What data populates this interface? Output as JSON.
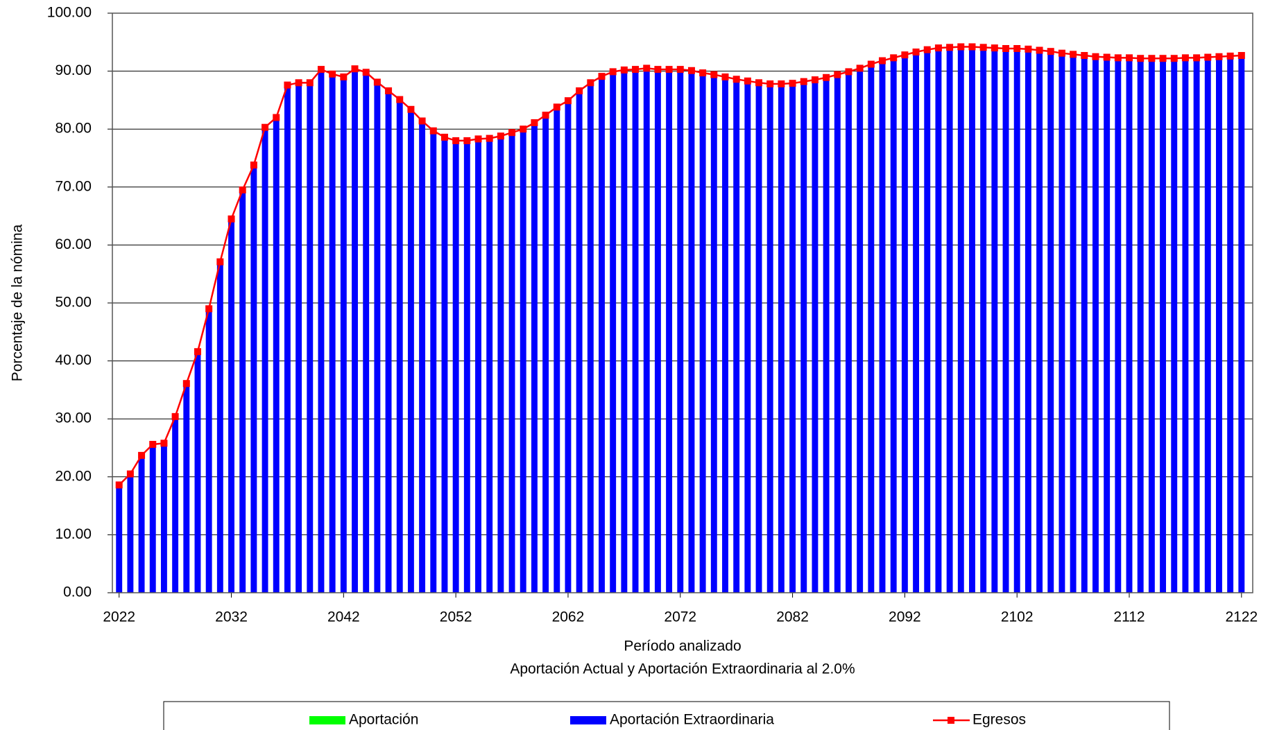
{
  "chart_data": {
    "type": "bar",
    "y_label": "Porcentaje de la nómina",
    "x_label": "Período analizado",
    "subtitle": "Aportación Actual y Aportación Extraordinaria al 2.0%",
    "x": [
      2022,
      2023,
      2024,
      2025,
      2026,
      2027,
      2028,
      2029,
      2030,
      2031,
      2032,
      2033,
      2034,
      2035,
      2036,
      2037,
      2038,
      2039,
      2040,
      2041,
      2042,
      2043,
      2044,
      2045,
      2046,
      2047,
      2048,
      2049,
      2050,
      2051,
      2052,
      2053,
      2054,
      2055,
      2056,
      2057,
      2058,
      2059,
      2060,
      2061,
      2062,
      2063,
      2064,
      2065,
      2066,
      2067,
      2068,
      2069,
      2070,
      2071,
      2072,
      2073,
      2074,
      2075,
      2076,
      2077,
      2078,
      2079,
      2080,
      2081,
      2082,
      2083,
      2084,
      2085,
      2086,
      2087,
      2088,
      2089,
      2090,
      2091,
      2092,
      2093,
      2094,
      2095,
      2096,
      2097,
      2098,
      2099,
      2100,
      2101,
      2102,
      2103,
      2104,
      2105,
      2106,
      2107,
      2108,
      2109,
      2110,
      2111,
      2112,
      2113,
      2114,
      2115,
      2116,
      2117,
      2118,
      2119,
      2120,
      2121,
      2122
    ],
    "series": [
      {
        "name": "Aportación",
        "color": "#00ff00",
        "values": [
          null,
          null,
          null,
          null,
          null,
          null,
          null,
          null,
          null,
          null,
          null,
          null,
          null,
          null,
          null,
          null,
          null,
          null,
          null,
          null,
          null,
          null,
          null,
          null,
          null,
          null,
          null,
          null,
          null,
          null,
          null,
          null,
          null,
          null,
          null,
          null,
          null,
          null,
          null,
          null,
          null,
          null,
          null,
          null,
          null,
          null,
          null,
          null,
          null,
          null,
          null,
          null,
          null,
          null,
          null,
          null,
          null,
          null,
          null,
          null,
          null,
          null,
          null,
          null,
          null,
          null,
          null,
          null,
          null,
          null,
          null,
          null,
          null,
          null,
          null,
          null,
          null,
          null,
          null,
          null,
          null,
          null,
          null,
          null,
          null,
          null,
          null,
          null,
          null,
          null,
          null,
          null,
          null,
          null,
          null,
          null,
          null,
          null,
          null,
          null,
          null
        ]
      },
      {
        "name": "Aportación Extraordinaria",
        "color": "#0000ff",
        "values": [
          18.6,
          20.5,
          23.7,
          25.6,
          25.8,
          30.4,
          36.1,
          41.6,
          49.0,
          57.1,
          64.5,
          69.5,
          73.8,
          80.3,
          82.0,
          87.6,
          88.0,
          88.0,
          90.3,
          89.5,
          89.0,
          90.4,
          89.8,
          88.1,
          86.6,
          85.1,
          83.4,
          81.4,
          79.7,
          78.6,
          78.0,
          78.0,
          78.3,
          78.4,
          78.8,
          79.4,
          80.0,
          81.1,
          82.4,
          83.8,
          84.9,
          86.6,
          88.0,
          89.1,
          89.9,
          90.2,
          90.3,
          90.5,
          90.3,
          90.3,
          90.3,
          90.1,
          89.7,
          89.4,
          89.0,
          88.6,
          88.3,
          88.0,
          87.8,
          87.8,
          87.9,
          88.2,
          88.5,
          88.9,
          89.4,
          89.9,
          90.5,
          91.2,
          91.8,
          92.3,
          92.8,
          93.3,
          93.7,
          94.0,
          94.1,
          94.2,
          94.2,
          94.1,
          94.0,
          93.9,
          93.9,
          93.8,
          93.6,
          93.4,
          93.1,
          92.9,
          92.7,
          92.5,
          92.4,
          92.3,
          92.3,
          92.2,
          92.2,
          92.2,
          92.2,
          92.3,
          92.3,
          92.4,
          92.5,
          92.6,
          92.7
        ]
      },
      {
        "name": "Egresos",
        "color": "#ff0000",
        "type": "line",
        "values": [
          18.6,
          20.5,
          23.7,
          25.6,
          25.8,
          30.4,
          36.1,
          41.6,
          49.0,
          57.1,
          64.5,
          69.5,
          73.8,
          80.3,
          82.0,
          87.6,
          88.0,
          88.0,
          90.3,
          89.5,
          89.0,
          90.4,
          89.8,
          88.1,
          86.6,
          85.1,
          83.4,
          81.4,
          79.7,
          78.6,
          78.0,
          78.0,
          78.3,
          78.4,
          78.8,
          79.4,
          80.0,
          81.1,
          82.4,
          83.8,
          84.9,
          86.6,
          88.0,
          89.1,
          89.9,
          90.2,
          90.3,
          90.5,
          90.3,
          90.3,
          90.3,
          90.1,
          89.7,
          89.4,
          89.0,
          88.6,
          88.3,
          88.0,
          87.8,
          87.8,
          87.9,
          88.2,
          88.5,
          88.9,
          89.4,
          89.9,
          90.5,
          91.2,
          91.8,
          92.3,
          92.8,
          93.3,
          93.7,
          94.0,
          94.1,
          94.2,
          94.2,
          94.1,
          94.0,
          93.9,
          93.9,
          93.8,
          93.6,
          93.4,
          93.1,
          92.9,
          92.7,
          92.5,
          92.4,
          92.3,
          92.3,
          92.2,
          92.2,
          92.2,
          92.2,
          92.3,
          92.3,
          92.4,
          92.5,
          92.6,
          92.7
        ]
      }
    ],
    "xlim": [
      2021.4,
      2123.0
    ],
    "xticks": [
      2022,
      2032,
      2042,
      2052,
      2062,
      2072,
      2082,
      2092,
      2102,
      2112,
      2122
    ],
    "ylim": [
      0,
      100
    ],
    "yticks": [
      {
        "value": 0,
        "label": "0.00"
      },
      {
        "value": 10,
        "label": "10.00"
      },
      {
        "value": 20,
        "label": "20.00"
      },
      {
        "value": 30,
        "label": "30.00"
      },
      {
        "value": 40,
        "label": "40.00"
      },
      {
        "value": 50,
        "label": "50.00"
      },
      {
        "value": 60,
        "label": "60.00"
      },
      {
        "value": 70,
        "label": "70.00"
      },
      {
        "value": 80,
        "label": "80.00"
      },
      {
        "value": 90,
        "label": "90.00"
      },
      {
        "value": 100,
        "label": "100.00"
      }
    ],
    "grid": true,
    "legend": "bottom"
  }
}
